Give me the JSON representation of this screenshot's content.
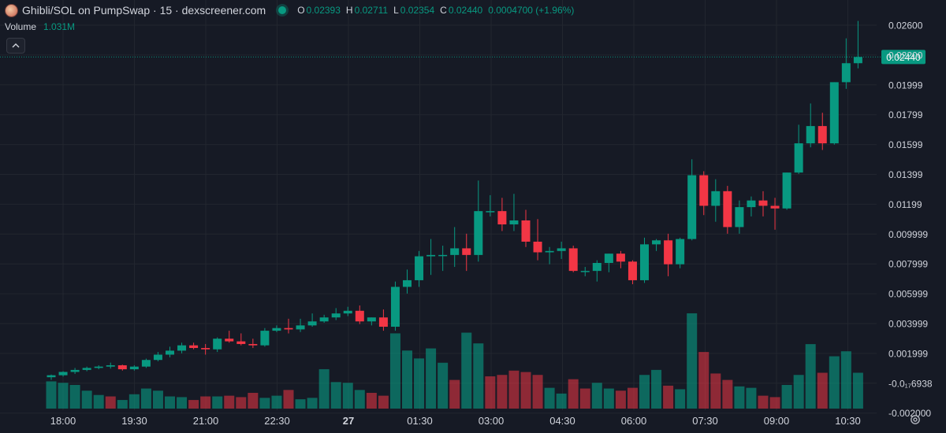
{
  "header": {
    "title": "Ghibli/SOL on PumpSwap · 15 · dexscreener.com",
    "ohlc": [
      {
        "key": "O",
        "value": "0.02393"
      },
      {
        "key": "H",
        "value": "0.02711"
      },
      {
        "key": "L",
        "value": "0.02354"
      },
      {
        "key": "C",
        "value": "0.02440"
      }
    ],
    "change": "0.0004700 (+1.96%)",
    "volume_label": "Volume",
    "volume_value": "1.031M",
    "collapse_icon": "chevron-up-icon"
  },
  "colors": {
    "up": "#089981",
    "down": "#f23645",
    "background": "#161a25"
  },
  "chart_data": {
    "type": "candlestick",
    "interval_minutes": 15,
    "x_ticks": [
      "18:00",
      "19:30",
      "21:00",
      "22:30",
      "27",
      "01:30",
      "03:00",
      "04:30",
      "06:00",
      "07:30",
      "09:00",
      "10:30"
    ],
    "price_ticks": [
      "0.02600",
      "0.02200",
      "0.01999",
      "0.01799",
      "0.01599",
      "0.01399",
      "0.01199",
      "0.009999",
      "0.007999",
      "0.005999",
      "0.003999",
      "0.001999",
      "-0.0₁₇6938",
      "-0.002000"
    ],
    "price_range": [
      -0.002,
      0.0275
    ],
    "last_price_label": "0.02440",
    "candles": [
      {
        "o": 0.0003,
        "h": 0.0005,
        "l": 0.0001,
        "c": 0.00045
      },
      {
        "o": 0.00045,
        "h": 0.00075,
        "l": 0.00035,
        "c": 0.0007
      },
      {
        "o": 0.0007,
        "h": 0.001,
        "l": 0.00055,
        "c": 0.00085
      },
      {
        "o": 0.00085,
        "h": 0.0011,
        "l": 0.00075,
        "c": 0.001
      },
      {
        "o": 0.001,
        "h": 0.0012,
        "l": 0.0009,
        "c": 0.0011
      },
      {
        "o": 0.0011,
        "h": 0.0014,
        "l": 0.00095,
        "c": 0.0012
      },
      {
        "o": 0.0012,
        "h": 0.00125,
        "l": 0.0008,
        "c": 0.0009
      },
      {
        "o": 0.0009,
        "h": 0.0012,
        "l": 0.0008,
        "c": 0.0011
      },
      {
        "o": 0.0011,
        "h": 0.0017,
        "l": 0.001,
        "c": 0.0016
      },
      {
        "o": 0.0016,
        "h": 0.0022,
        "l": 0.0015,
        "c": 0.002
      },
      {
        "o": 0.002,
        "h": 0.0026,
        "l": 0.0018,
        "c": 0.0023
      },
      {
        "o": 0.0023,
        "h": 0.0029,
        "l": 0.0021,
        "c": 0.0027
      },
      {
        "o": 0.0027,
        "h": 0.0029,
        "l": 0.0024,
        "c": 0.0025
      },
      {
        "o": 0.0025,
        "h": 0.0028,
        "l": 0.002,
        "c": 0.0024
      },
      {
        "o": 0.0024,
        "h": 0.0033,
        "l": 0.0022,
        "c": 0.0032
      },
      {
        "o": 0.0032,
        "h": 0.0038,
        "l": 0.0029,
        "c": 0.003
      },
      {
        "o": 0.003,
        "h": 0.0036,
        "l": 0.0027,
        "c": 0.0028
      },
      {
        "o": 0.0028,
        "h": 0.0032,
        "l": 0.0025,
        "c": 0.0027
      },
      {
        "o": 0.0027,
        "h": 0.004,
        "l": 0.0026,
        "c": 0.0038
      },
      {
        "o": 0.0038,
        "h": 0.0042,
        "l": 0.0037,
        "c": 0.004
      },
      {
        "o": 0.004,
        "h": 0.0047,
        "l": 0.0036,
        "c": 0.0039
      },
      {
        "o": 0.0039,
        "h": 0.0047,
        "l": 0.0037,
        "c": 0.0042
      },
      {
        "o": 0.0042,
        "h": 0.0051,
        "l": 0.0041,
        "c": 0.0045
      },
      {
        "o": 0.0045,
        "h": 0.005,
        "l": 0.0044,
        "c": 0.0048
      },
      {
        "o": 0.0048,
        "h": 0.0055,
        "l": 0.0046,
        "c": 0.0051
      },
      {
        "o": 0.0051,
        "h": 0.0056,
        "l": 0.0049,
        "c": 0.0053
      },
      {
        "o": 0.0053,
        "h": 0.0057,
        "l": 0.0043,
        "c": 0.0045
      },
      {
        "o": 0.0045,
        "h": 0.0048,
        "l": 0.0042,
        "c": 0.0048
      },
      {
        "o": 0.0048,
        "h": 0.0054,
        "l": 0.0038,
        "c": 0.0041
      },
      {
        "o": 0.0041,
        "h": 0.0075,
        "l": 0.0038,
        "c": 0.0071
      },
      {
        "o": 0.0071,
        "h": 0.0084,
        "l": 0.0066,
        "c": 0.0076
      },
      {
        "o": 0.0076,
        "h": 0.0098,
        "l": 0.0071,
        "c": 0.0094
      },
      {
        "o": 0.0094,
        "h": 0.0107,
        "l": 0.008,
        "c": 0.0095
      },
      {
        "o": 0.0095,
        "h": 0.0102,
        "l": 0.0083,
        "c": 0.0095
      },
      {
        "o": 0.0095,
        "h": 0.0116,
        "l": 0.0086,
        "c": 0.01
      },
      {
        "o": 0.01,
        "h": 0.0111,
        "l": 0.0083,
        "c": 0.0095
      },
      {
        "o": 0.0095,
        "h": 0.0151,
        "l": 0.009,
        "c": 0.0128
      },
      {
        "o": 0.0128,
        "h": 0.014,
        "l": 0.0124,
        "c": 0.0128
      },
      {
        "o": 0.0128,
        "h": 0.0138,
        "l": 0.0113,
        "c": 0.0118
      },
      {
        "o": 0.0118,
        "h": 0.0141,
        "l": 0.0113,
        "c": 0.0121
      },
      {
        "o": 0.0121,
        "h": 0.0129,
        "l": 0.0101,
        "c": 0.0105
      },
      {
        "o": 0.0105,
        "h": 0.0122,
        "l": 0.0091,
        "c": 0.0097
      },
      {
        "o": 0.0097,
        "h": 0.0101,
        "l": 0.0088,
        "c": 0.0098
      },
      {
        "o": 0.0098,
        "h": 0.0105,
        "l": 0.0092,
        "c": 0.01
      },
      {
        "o": 0.01,
        "h": 0.0102,
        "l": 0.0082,
        "c": 0.0083
      },
      {
        "o": 0.0083,
        "h": 0.0086,
        "l": 0.0079,
        "c": 0.0083
      },
      {
        "o": 0.0083,
        "h": 0.0091,
        "l": 0.0075,
        "c": 0.0089
      },
      {
        "o": 0.0089,
        "h": 0.0096,
        "l": 0.0082,
        "c": 0.0096
      },
      {
        "o": 0.0096,
        "h": 0.0098,
        "l": 0.0085,
        "c": 0.009
      },
      {
        "o": 0.009,
        "h": 0.0091,
        "l": 0.0073,
        "c": 0.0076
      },
      {
        "o": 0.0076,
        "h": 0.0108,
        "l": 0.0074,
        "c": 0.0103
      },
      {
        "o": 0.0103,
        "h": 0.0107,
        "l": 0.0098,
        "c": 0.0106
      },
      {
        "o": 0.0106,
        "h": 0.0111,
        "l": 0.0079,
        "c": 0.0088
      },
      {
        "o": 0.0088,
        "h": 0.0108,
        "l": 0.0085,
        "c": 0.0107
      },
      {
        "o": 0.0107,
        "h": 0.0167,
        "l": 0.0106,
        "c": 0.0155
      },
      {
        "o": 0.0155,
        "h": 0.0158,
        "l": 0.0125,
        "c": 0.0132
      },
      {
        "o": 0.0132,
        "h": 0.0152,
        "l": 0.012,
        "c": 0.0143
      },
      {
        "o": 0.0143,
        "h": 0.0147,
        "l": 0.0111,
        "c": 0.0116
      },
      {
        "o": 0.0116,
        "h": 0.0136,
        "l": 0.0111,
        "c": 0.0131
      },
      {
        "o": 0.0131,
        "h": 0.0139,
        "l": 0.0124,
        "c": 0.0136
      },
      {
        "o": 0.0136,
        "h": 0.0143,
        "l": 0.0124,
        "c": 0.0132
      },
      {
        "o": 0.0132,
        "h": 0.0138,
        "l": 0.0114,
        "c": 0.013
      },
      {
        "o": 0.013,
        "h": 0.0157,
        "l": 0.0129,
        "c": 0.0157
      },
      {
        "o": 0.0157,
        "h": 0.0193,
        "l": 0.0156,
        "c": 0.0179
      },
      {
        "o": 0.0179,
        "h": 0.0209,
        "l": 0.0176,
        "c": 0.0192
      },
      {
        "o": 0.0192,
        "h": 0.0202,
        "l": 0.0174,
        "c": 0.0179
      },
      {
        "o": 0.0179,
        "h": 0.0225,
        "l": 0.0178,
        "c": 0.0225
      },
      {
        "o": 0.0225,
        "h": 0.0258,
        "l": 0.022,
        "c": 0.02393
      },
      {
        "o": 0.02393,
        "h": 0.02711,
        "l": 0.02354,
        "c": 0.0244
      }
    ],
    "volume": [
      {
        "v": 38,
        "up": true
      },
      {
        "v": 36,
        "up": true
      },
      {
        "v": 33,
        "up": true
      },
      {
        "v": 25,
        "up": true
      },
      {
        "v": 19,
        "up": true
      },
      {
        "v": 17,
        "up": false
      },
      {
        "v": 12,
        "up": true
      },
      {
        "v": 20,
        "up": true
      },
      {
        "v": 28,
        "up": true
      },
      {
        "v": 25,
        "up": true
      },
      {
        "v": 17,
        "up": true
      },
      {
        "v": 16,
        "up": true
      },
      {
        "v": 12,
        "up": false
      },
      {
        "v": 17,
        "up": false
      },
      {
        "v": 17,
        "up": true
      },
      {
        "v": 18,
        "up": false
      },
      {
        "v": 16,
        "up": false
      },
      {
        "v": 22,
        "up": false
      },
      {
        "v": 15,
        "up": true
      },
      {
        "v": 18,
        "up": true
      },
      {
        "v": 26,
        "up": false
      },
      {
        "v": 13,
        "up": true
      },
      {
        "v": 15,
        "up": true
      },
      {
        "v": 55,
        "up": true
      },
      {
        "v": 37,
        "up": true
      },
      {
        "v": 36,
        "up": true
      },
      {
        "v": 26,
        "up": true
      },
      {
        "v": 22,
        "up": false
      },
      {
        "v": 18,
        "up": false
      },
      {
        "v": 105,
        "up": true
      },
      {
        "v": 81,
        "up": true
      },
      {
        "v": 70,
        "up": true
      },
      {
        "v": 84,
        "up": true
      },
      {
        "v": 64,
        "up": true
      },
      {
        "v": 40,
        "up": false
      },
      {
        "v": 106,
        "up": true
      },
      {
        "v": 91,
        "up": true
      },
      {
        "v": 45,
        "up": false
      },
      {
        "v": 47,
        "up": false
      },
      {
        "v": 53,
        "up": false
      },
      {
        "v": 51,
        "up": false
      },
      {
        "v": 47,
        "up": false
      },
      {
        "v": 29,
        "up": true
      },
      {
        "v": 21,
        "up": true
      },
      {
        "v": 41,
        "up": false
      },
      {
        "v": 28,
        "up": false
      },
      {
        "v": 36,
        "up": true
      },
      {
        "v": 28,
        "up": true
      },
      {
        "v": 25,
        "up": false
      },
      {
        "v": 29,
        "up": false
      },
      {
        "v": 47,
        "up": true
      },
      {
        "v": 54,
        "up": true
      },
      {
        "v": 32,
        "up": false
      },
      {
        "v": 27,
        "up": true
      },
      {
        "v": 133,
        "up": true
      },
      {
        "v": 79,
        "up": false
      },
      {
        "v": 49,
        "up": false
      },
      {
        "v": 40,
        "up": false
      },
      {
        "v": 31,
        "up": true
      },
      {
        "v": 29,
        "up": true
      },
      {
        "v": 18,
        "up": false
      },
      {
        "v": 16,
        "up": false
      },
      {
        "v": 33,
        "up": true
      },
      {
        "v": 47,
        "up": true
      },
      {
        "v": 90,
        "up": true
      },
      {
        "v": 50,
        "up": false
      },
      {
        "v": 73,
        "up": true
      },
      {
        "v": 80,
        "up": true
      },
      {
        "v": 50,
        "up": true
      }
    ]
  }
}
